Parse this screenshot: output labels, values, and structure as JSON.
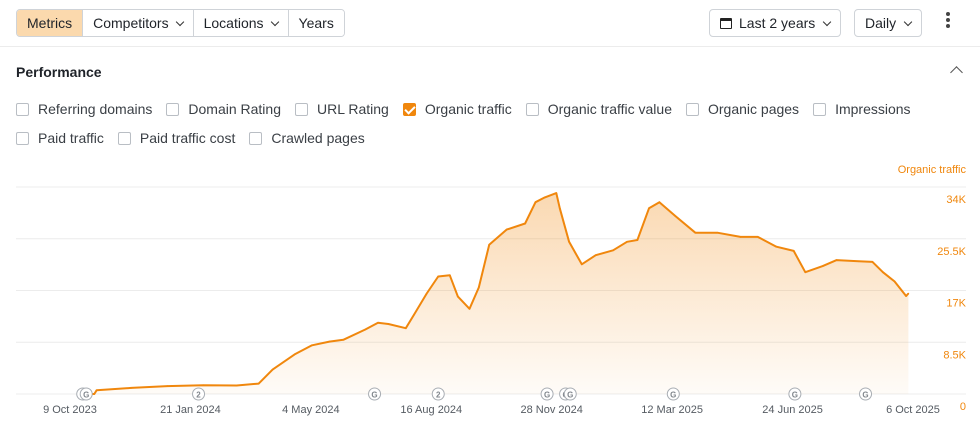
{
  "toolbar": {
    "tabs": [
      "Metrics",
      "Competitors",
      "Locations",
      "Years"
    ],
    "active_tab": "Metrics",
    "date_range": "Last 2 years",
    "granularity": "Daily"
  },
  "performance": {
    "title": "Performance",
    "checkboxes_row1": [
      {
        "label": "Referring domains",
        "checked": false
      },
      {
        "label": "Domain Rating",
        "checked": false
      },
      {
        "label": "URL Rating",
        "checked": false
      },
      {
        "label": "Organic traffic",
        "checked": true
      },
      {
        "label": "Organic traffic value",
        "checked": false
      },
      {
        "label": "Organic pages",
        "checked": false
      },
      {
        "label": "Impressions",
        "checked": false
      }
    ],
    "checkboxes_row2": [
      {
        "label": "Paid traffic",
        "checked": false
      },
      {
        "label": "Paid traffic cost",
        "checked": false
      },
      {
        "label": "Crawled pages",
        "checked": false
      }
    ]
  },
  "colors": {
    "accent": "#f0870d",
    "active_tab_bg": "#fbd9ad"
  },
  "chart_data": {
    "type": "area",
    "series": [
      {
        "name": "Organic traffic",
        "points": [
          [
            "2023-10-17",
            0
          ],
          [
            "2023-10-30",
            0
          ],
          [
            "2023-11-01",
            600
          ],
          [
            "2023-12-01",
            1000
          ],
          [
            "2024-01-01",
            1300
          ],
          [
            "2024-02-01",
            1450
          ],
          [
            "2024-03-01",
            1400
          ],
          [
            "2024-03-20",
            1700
          ],
          [
            "2024-04-01",
            4000
          ],
          [
            "2024-04-20",
            6500
          ],
          [
            "2024-05-05",
            8000
          ],
          [
            "2024-05-20",
            8600
          ],
          [
            "2024-06-01",
            8900
          ],
          [
            "2024-06-20",
            10600
          ],
          [
            "2024-07-01",
            11700
          ],
          [
            "2024-07-10",
            11500
          ],
          [
            "2024-07-25",
            10800
          ],
          [
            "2024-08-01",
            13000
          ],
          [
            "2024-08-12",
            16500
          ],
          [
            "2024-08-22",
            19300
          ],
          [
            "2024-09-01",
            19500
          ],
          [
            "2024-09-08",
            16000
          ],
          [
            "2024-09-18",
            14000
          ],
          [
            "2024-09-26",
            17500
          ],
          [
            "2024-10-05",
            24500
          ],
          [
            "2024-10-20",
            27000
          ],
          [
            "2024-11-05",
            28000
          ],
          [
            "2024-11-14",
            31500
          ],
          [
            "2024-11-22",
            32300
          ],
          [
            "2024-12-02",
            33000
          ],
          [
            "2024-12-05",
            30500
          ],
          [
            "2024-12-13",
            25000
          ],
          [
            "2024-12-24",
            21300
          ],
          [
            "2025-01-05",
            22800
          ],
          [
            "2025-01-20",
            23600
          ],
          [
            "2025-02-01",
            25000
          ],
          [
            "2025-02-10",
            25300
          ],
          [
            "2025-02-20",
            30500
          ],
          [
            "2025-03-01",
            31500
          ],
          [
            "2025-03-15",
            29200
          ],
          [
            "2025-04-01",
            26500
          ],
          [
            "2025-04-20",
            26500
          ],
          [
            "2025-05-10",
            25800
          ],
          [
            "2025-05-25",
            25800
          ],
          [
            "2025-06-10",
            24200
          ],
          [
            "2025-06-25",
            23500
          ],
          [
            "2025-07-05",
            20000
          ],
          [
            "2025-07-20",
            21000
          ],
          [
            "2025-08-01",
            22000
          ],
          [
            "2025-08-20",
            21800
          ],
          [
            "2025-09-01",
            21700
          ],
          [
            "2025-09-10",
            20000
          ],
          [
            "2025-09-20",
            18500
          ],
          [
            "2025-09-30",
            16100
          ],
          [
            "2025-10-02",
            16500
          ]
        ]
      }
    ],
    "x_ticks": [
      "9 Oct 2023",
      "21 Jan 2024",
      "4 May 2024",
      "16 Aug 2024",
      "28 Nov 2024",
      "12 Mar 2025",
      "24 Jun 2025",
      "6 Oct 2025"
    ],
    "x_tick_dates": [
      "2023-10-09",
      "2024-01-21",
      "2024-05-04",
      "2024-08-16",
      "2024-11-28",
      "2025-03-12",
      "2025-06-24",
      "2025-10-06"
    ],
    "y_ticks": [
      "34K",
      "25.5K",
      "17K",
      "8.5K",
      "0"
    ],
    "y_tick_values": [
      34000,
      25500,
      17000,
      8500,
      0
    ],
    "ylim": [
      0,
      34000
    ],
    "xlim": [
      "2023-10-09",
      "2025-10-06"
    ],
    "ylabel": "Organic traffic",
    "grid": true,
    "annotations": [
      {
        "label": "G",
        "date": "2023-10-20"
      },
      {
        "label": "G",
        "date": "2023-10-23"
      },
      {
        "label": "2",
        "date": "2024-01-28"
      },
      {
        "label": "G",
        "date": "2024-06-28"
      },
      {
        "label": "2",
        "date": "2024-08-22"
      },
      {
        "label": "G",
        "date": "2024-11-24"
      },
      {
        "label": "G",
        "date": "2024-12-10"
      },
      {
        "label": "G",
        "date": "2024-12-14"
      },
      {
        "label": "G",
        "date": "2025-03-13"
      },
      {
        "label": "G",
        "date": "2025-06-26"
      },
      {
        "label": "G",
        "date": "2025-08-26"
      }
    ]
  }
}
